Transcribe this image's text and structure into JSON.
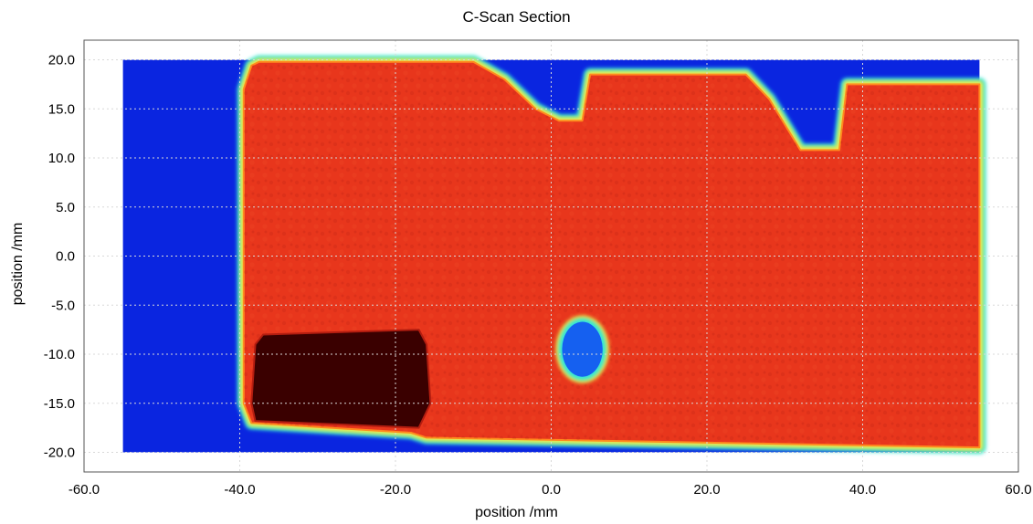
{
  "chart_data": {
    "type": "heatmap",
    "title": "C-Scan Section",
    "xlabel": "position /mm",
    "ylabel": "position /mm",
    "xlim": [
      -60,
      60
    ],
    "ylim": [
      -22,
      22
    ],
    "x_ticks": [
      -60,
      -40,
      -20,
      0,
      20,
      40,
      60
    ],
    "x_tick_labels": [
      "-60.0",
      "-40.0",
      "-20.0",
      "0.0",
      "20.0",
      "40.0",
      "60.0"
    ],
    "y_ticks": [
      20,
      15,
      10,
      5,
      0,
      -5,
      -10,
      -15,
      -20
    ],
    "y_tick_labels": [
      "20.0",
      "15.0",
      "10.0",
      "5.0",
      "0.0",
      "-5.0",
      "-10.0",
      "-15.0",
      "-20.0"
    ],
    "scan_extent": {
      "x": [
        -55,
        55
      ],
      "y": [
        -20,
        20
      ]
    },
    "grid": true,
    "colormap": "jet",
    "colors": {
      "background_low": "#0a25e0",
      "edge_cyan": "#30e6d8",
      "edge_yellow": "#f2e84a",
      "high": "#e8361c",
      "high_dark": "#b31d10",
      "void": "#3a0000"
    },
    "regions": [
      {
        "name": "part",
        "level": "high",
        "outline": [
          [
            -37.5,
            19.8
          ],
          [
            -10,
            19.8
          ],
          [
            -6,
            18
          ],
          [
            -2,
            15
          ],
          [
            1,
            13.8
          ],
          [
            4,
            13.8
          ],
          [
            5,
            18.5
          ],
          [
            25,
            18.5
          ],
          [
            28,
            16
          ],
          [
            32,
            10.8
          ],
          [
            37,
            10.8
          ],
          [
            38,
            17.5
          ],
          [
            55,
            17.5
          ],
          [
            55,
            -19.5
          ],
          [
            -16,
            -18.5
          ],
          [
            -18,
            -18
          ],
          [
            -38.5,
            -17
          ],
          [
            -39.5,
            -15
          ],
          [
            -39.5,
            17
          ],
          [
            -38.5,
            19.4
          ]
        ]
      },
      {
        "name": "void-lower-left",
        "level": "void",
        "outline": [
          [
            -38,
            -9
          ],
          [
            -37,
            -8
          ],
          [
            -17,
            -7.5
          ],
          [
            -16,
            -9
          ],
          [
            -15.5,
            -15
          ],
          [
            -17,
            -17.5
          ],
          [
            -38,
            -16.8
          ],
          [
            -38.5,
            -15
          ]
        ]
      },
      {
        "name": "hole",
        "level": "low",
        "center": [
          4,
          -9.5
        ],
        "radius": [
          2.6,
          2.8
        ]
      }
    ]
  }
}
